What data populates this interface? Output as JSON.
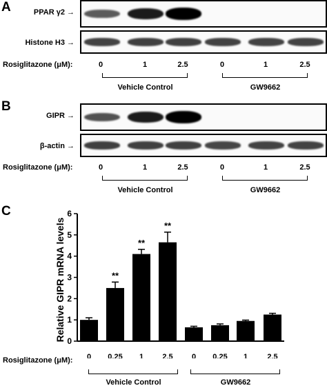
{
  "panels": {
    "a": {
      "letter": "A",
      "blots": [
        {
          "label": "PPAR γ2 →",
          "intensity": [
            0.45,
            0.85,
            1.0,
            0,
            0,
            0
          ]
        },
        {
          "label": "Histone H3 →",
          "intensity": [
            0.6,
            0.62,
            0.62,
            0.6,
            0.6,
            0.6
          ]
        }
      ],
      "row_label": "Rosiglitazone (μM):",
      "doses": [
        "0",
        "1",
        "2.5",
        "0",
        "1",
        "2.5"
      ],
      "groups": [
        "Vehicle Control",
        "GW9662"
      ]
    },
    "b": {
      "letter": "B",
      "blots": [
        {
          "label": "GIPR →",
          "intensity": [
            0.5,
            0.85,
            1.0,
            0,
            0,
            0
          ]
        },
        {
          "label": "β-actin →",
          "intensity": [
            0.62,
            0.62,
            0.62,
            0.58,
            0.6,
            0.6
          ]
        }
      ],
      "row_label": "Rosiglitazone (μM):",
      "doses": [
        "0",
        "1",
        "2.5",
        "0",
        "1",
        "2.5"
      ],
      "groups": [
        "Vehicle Control",
        "GW9662"
      ]
    },
    "c": {
      "letter": "C",
      "row_label": "Rosiglitazone (μM):",
      "groups": [
        "Vehicle Control",
        "GW9662"
      ]
    }
  },
  "chart_data": {
    "type": "bar",
    "ylabel": "Relative GIPR mRNA levels",
    "xlabel": "",
    "ylim": [
      0,
      6
    ],
    "yticks": [
      "0",
      "1",
      "2",
      "3",
      "4",
      "5",
      "6"
    ],
    "categories": [
      "0",
      "0.25",
      "1",
      "2.5",
      "0",
      "0.25",
      "1",
      "2.5"
    ],
    "values": [
      1.0,
      2.5,
      4.1,
      4.65,
      0.65,
      0.75,
      0.95,
      1.25
    ],
    "errors": [
      0.1,
      0.28,
      0.22,
      0.48,
      0.05,
      0.06,
      0.04,
      0.06
    ],
    "annotations": [
      "",
      "**",
      "**",
      "**",
      "",
      "",
      "",
      ""
    ],
    "bar_color": "#000000",
    "groups": [
      "Vehicle Control",
      "GW9662"
    ]
  }
}
